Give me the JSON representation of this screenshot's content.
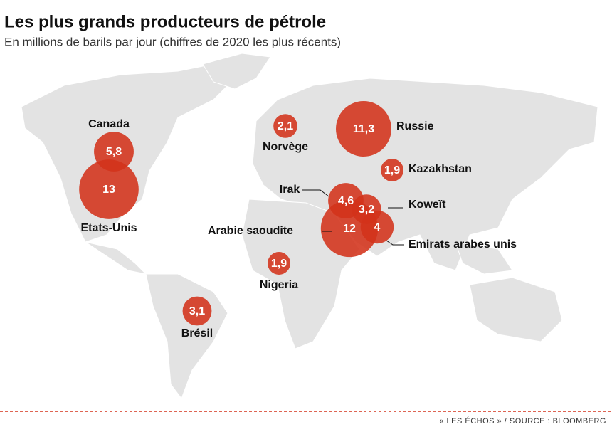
{
  "chart_data": {
    "type": "bubble-map",
    "title": "Les plus grands producteurs de pétrole",
    "subtitle": "En millions de barils par jour (chiffres de 2020 les plus récents)",
    "categories": [
      "Canada",
      "Etats-Unis",
      "Norvège",
      "Russie",
      "Kazakhstan",
      "Irak",
      "Koweït",
      "Arabie saoudite",
      "Emirats arabes unis",
      "Nigeria",
      "Brésil"
    ],
    "values": [
      5.8,
      13,
      2.1,
      11.3,
      1.9,
      4.6,
      3.2,
      12,
      4,
      1.9,
      3.1
    ],
    "value_labels": [
      "5,8",
      "13",
      "2,1",
      "11,3",
      "1,9",
      "4,6",
      "3,2",
      "12",
      "4",
      "1,9",
      "3,1"
    ],
    "color": "#d3321a",
    "source": "« LES ÉCHOS » / SOURCE : BLOOMBERG"
  }
}
